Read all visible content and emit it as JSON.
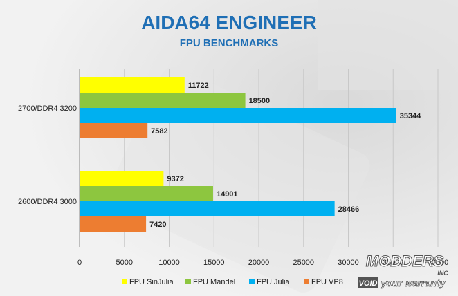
{
  "chart_data": {
    "type": "bar",
    "orientation": "horizontal",
    "title": "AIDA64 ENGINEER",
    "subtitle": "FPU BENCHMARKS",
    "categories": [
      "2700/DDR4 3200",
      "2600/DDR4 3000"
    ],
    "series": [
      {
        "name": "FPU SinJulia",
        "color": "#ffff00",
        "values": [
          11722,
          9372
        ]
      },
      {
        "name": "FPU Mandel",
        "color": "#8dc63f",
        "values": [
          18500,
          14901
        ]
      },
      {
        "name": "FPU Julia",
        "color": "#00b0f0",
        "values": [
          35344,
          28466
        ]
      },
      {
        "name": "FPU VP8",
        "color": "#ed7d31",
        "values": [
          7582,
          7420
        ]
      }
    ],
    "xlim": [
      0,
      40000
    ],
    "xticks": [
      0,
      5000,
      10000,
      15000,
      20000,
      25000,
      30000,
      35000,
      40000
    ],
    "grid": true,
    "legend_position": "bottom"
  },
  "watermark": {
    "line1": "MODDERS",
    "line2": "INC",
    "line3_a": "VOID",
    "line3_b": "your warranty"
  }
}
